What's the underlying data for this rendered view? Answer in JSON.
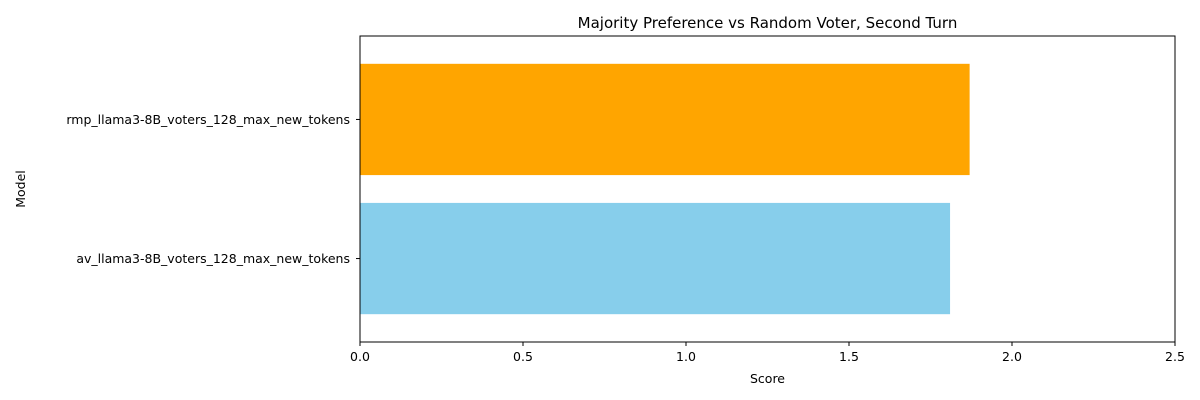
{
  "chart_data": {
    "type": "bar",
    "orientation": "horizontal",
    "title": "Majority Preference vs Random Voter, Second Turn",
    "xlabel": "Score",
    "ylabel": "Model",
    "categories": [
      "av_llama3-8B_voters_128_max_new_tokens",
      "rmp_llama3-8B_voters_128_max_new_tokens"
    ],
    "values": [
      1.81,
      1.87
    ],
    "colors": [
      "#87CEEB",
      "#FFA500"
    ],
    "xlim": [
      0,
      2.5
    ],
    "xticks": [
      "0.0",
      "0.5",
      "1.0",
      "1.5",
      "2.0",
      "2.5"
    ],
    "grid": false,
    "legend": "none"
  }
}
